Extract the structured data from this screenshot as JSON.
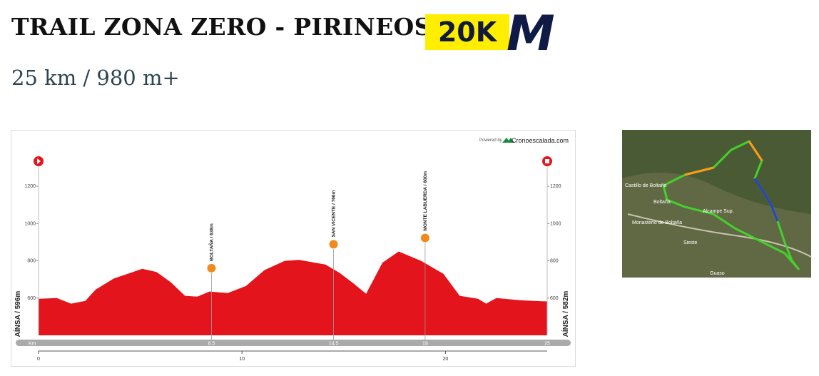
{
  "header": {
    "title": "TRAIL ZONA ZERO - PIRINEOS",
    "logo_text": "20K",
    "logo_mark": "M",
    "subtitle": "25 km / 980 m+"
  },
  "chart_data": {
    "type": "area",
    "powered_by": "Powered by",
    "brand": "Cronoescalada.com",
    "start_label": "AÍNSA / 596m",
    "end_label": "AÍNSA / 582m",
    "x": [
      0,
      0.9,
      1.6,
      2.3,
      2.8,
      3.7,
      5.1,
      5.8,
      6.5,
      7.2,
      7.8,
      8.4,
      9.3,
      10.2,
      11.1,
      12.1,
      12.8,
      14.1,
      14.8,
      15.5,
      16.1,
      16.9,
      17.7,
      18.8,
      19.9,
      20.7,
      21.6,
      22.0,
      22.5,
      23.7,
      25
    ],
    "values": [
      596,
      600,
      570,
      585,
      645,
      705,
      757,
      740,
      685,
      612,
      608,
      635,
      627,
      665,
      750,
      800,
      805,
      780,
      735,
      677,
      623,
      790,
      850,
      800,
      730,
      612,
      596,
      570,
      600,
      588,
      582
    ],
    "color": "#e3141c",
    "xlim": [
      0,
      25
    ],
    "ylim": [
      400,
      1300
    ],
    "yticks": [
      600,
      800,
      1000,
      1200
    ],
    "xticks": [
      0,
      10,
      20
    ],
    "km_bar_label": "Km",
    "end_km": 25,
    "waypoints": [
      {
        "label": "BOLTAÑA / 638m",
        "km": 8.5,
        "elevation": 638
      },
      {
        "label": "SAN VICENTE / 766m",
        "km": 14.5,
        "elevation": 766
      },
      {
        "label": "MONTE LABUERDA / 800m",
        "km": 19,
        "elevation": 800
      }
    ]
  },
  "map": {
    "labels": [
      "Castillo de Boltaña",
      "Boltaña",
      "Alcampe Sup.",
      "Monasterio de Boltaña",
      "Sieste",
      "Guaso"
    ]
  }
}
